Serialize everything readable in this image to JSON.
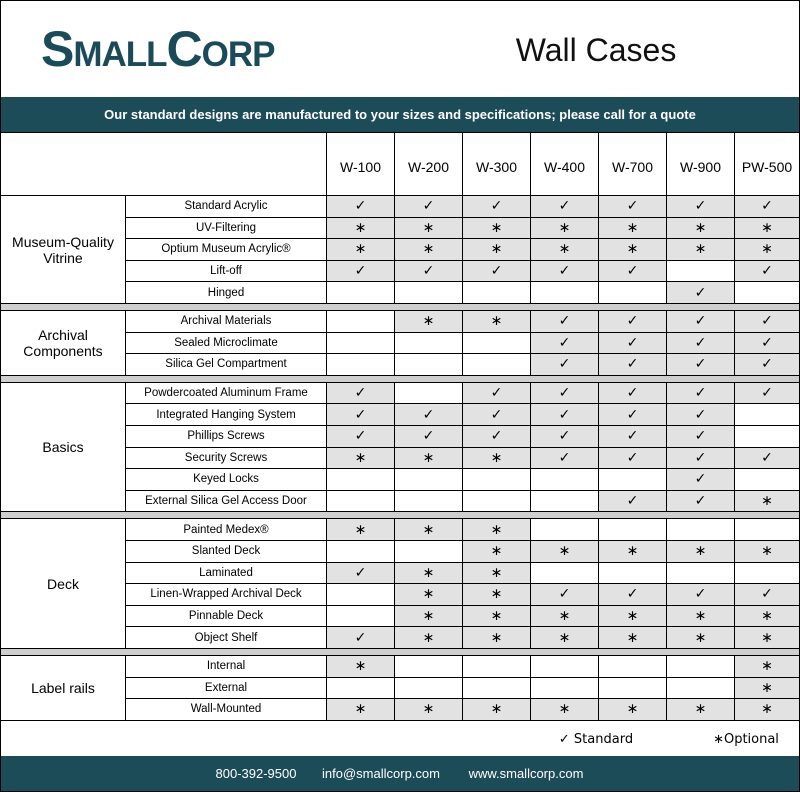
{
  "header": {
    "logo": "SmallCorp",
    "title": "Wall Cases"
  },
  "banner": "Our standard designs are manufactured to your sizes and specifications; please call for a quote",
  "table": {
    "columns": [
      "W-100",
      "W-200",
      "W-300",
      "W-400",
      "W-700",
      "W-900",
      "PW-500"
    ],
    "groups": [
      {
        "name": "Museum-Quality Vitrine",
        "rows": [
          {
            "feature": "Standard Acrylic",
            "cells": [
              "✓",
              "✓",
              "✓",
              "✓",
              "✓",
              "✓",
              "✓"
            ]
          },
          {
            "feature": "UV-Filtering",
            "cells": [
              "∗",
              "∗",
              "∗",
              "∗",
              "∗",
              "∗",
              "∗"
            ]
          },
          {
            "feature": "Optium Museum Acrylic®",
            "cells": [
              "∗",
              "∗",
              "∗",
              "∗",
              "∗",
              "∗",
              "∗"
            ]
          },
          {
            "feature": "Lift-off",
            "cells": [
              "✓",
              "✓",
              "✓",
              "✓",
              "✓",
              null,
              "✓"
            ]
          },
          {
            "feature": "Hinged",
            "cells": [
              null,
              null,
              null,
              null,
              null,
              "✓",
              null
            ]
          }
        ]
      },
      {
        "name": "Archival Components",
        "rows": [
          {
            "feature": "Archival Materials",
            "cells": [
              null,
              "∗",
              "∗",
              "✓",
              "✓",
              "✓",
              "✓"
            ]
          },
          {
            "feature": "Sealed Microclimate",
            "cells": [
              null,
              null,
              null,
              "✓",
              "✓",
              "✓",
              "✓"
            ]
          },
          {
            "feature": "Silica Gel Compartment",
            "cells": [
              null,
              null,
              null,
              "✓",
              "✓",
              "✓",
              "✓"
            ]
          }
        ]
      },
      {
        "name": "Basics",
        "rows": [
          {
            "feature": "Powdercoated Aluminum Frame",
            "cells": [
              "✓",
              null,
              "✓",
              "✓",
              "✓",
              "✓",
              "✓"
            ]
          },
          {
            "feature": "Integrated Hanging System",
            "cells": [
              "✓",
              "✓",
              "✓",
              "✓",
              "✓",
              "✓",
              null
            ]
          },
          {
            "feature": "Phillips Screws",
            "cells": [
              "✓",
              "✓",
              "✓",
              "✓",
              "✓",
              "✓",
              null
            ]
          },
          {
            "feature": "Security Screws",
            "cells": [
              "∗",
              "∗",
              "∗",
              "✓",
              "✓",
              "✓",
              "✓"
            ]
          },
          {
            "feature": "Keyed Locks",
            "cells": [
              null,
              null,
              null,
              null,
              null,
              "✓",
              null
            ]
          },
          {
            "feature": "External Silica Gel Access Door",
            "cells": [
              null,
              null,
              null,
              null,
              "✓",
              "✓",
              "∗"
            ]
          }
        ]
      },
      {
        "name": "Deck",
        "rows": [
          {
            "feature": "Painted Medex®",
            "cells": [
              "∗",
              "∗",
              "∗",
              null,
              null,
              null,
              null
            ]
          },
          {
            "feature": "Slanted Deck",
            "cells": [
              null,
              null,
              "∗",
              "∗",
              "∗",
              "∗",
              "∗"
            ]
          },
          {
            "feature": "Laminated",
            "cells": [
              "✓",
              "∗",
              "∗",
              null,
              null,
              null,
              null
            ]
          },
          {
            "feature": "Linen-Wrapped Archival Deck",
            "cells": [
              null,
              "∗",
              "∗",
              "✓",
              "✓",
              "✓",
              "✓"
            ]
          },
          {
            "feature": "Pinnable Deck",
            "cells": [
              null,
              "∗",
              "∗",
              "∗",
              "∗",
              "∗",
              "∗"
            ]
          },
          {
            "feature": "Object Shelf",
            "cells": [
              "✓",
              "∗",
              "∗",
              "∗",
              "∗",
              "∗",
              "∗"
            ]
          }
        ]
      },
      {
        "name": "Label rails",
        "rows": [
          {
            "feature": "Internal",
            "cells": [
              "∗",
              null,
              null,
              null,
              null,
              null,
              "∗"
            ]
          },
          {
            "feature": "External",
            "cells": [
              null,
              null,
              null,
              null,
              null,
              null,
              "∗"
            ]
          },
          {
            "feature": "Wall-Mounted",
            "cells": [
              "∗",
              "∗",
              "∗",
              "∗",
              "∗",
              "∗",
              "∗"
            ]
          }
        ]
      }
    ]
  },
  "legend": [
    "✓ Standard",
    "∗Optional"
  ],
  "footer": [
    "800-392-9500",
    "info@smallcorp.com",
    "www.smallcorp.com"
  ]
}
